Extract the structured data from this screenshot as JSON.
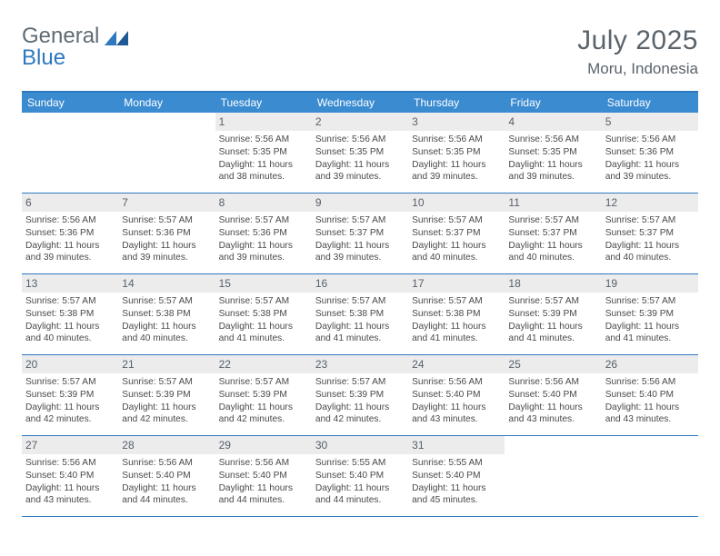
{
  "logo": {
    "part1": "General",
    "part2": "Blue"
  },
  "title": "July 2025",
  "location": "Moru, Indonesia",
  "dayNames": [
    "Sunday",
    "Monday",
    "Tuesday",
    "Wednesday",
    "Thursday",
    "Friday",
    "Saturday"
  ],
  "colors": {
    "headerBlue": "#3b8bd1",
    "borderBlue": "#2e78bf",
    "numBg": "#ececec",
    "textGray": "#5a636b",
    "bodyText": "#4a4a4a"
  },
  "typography": {
    "title_pt": 30,
    "location_pt": 17,
    "dow_pt": 12,
    "daynum_pt": 12,
    "body_pt": 10.2
  },
  "weeks": [
    [
      null,
      null,
      {
        "n": "1",
        "sunrise": "5:56 AM",
        "sunset": "5:35 PM",
        "dlh": 11,
        "dlm": 38
      },
      {
        "n": "2",
        "sunrise": "5:56 AM",
        "sunset": "5:35 PM",
        "dlh": 11,
        "dlm": 39
      },
      {
        "n": "3",
        "sunrise": "5:56 AM",
        "sunset": "5:35 PM",
        "dlh": 11,
        "dlm": 39
      },
      {
        "n": "4",
        "sunrise": "5:56 AM",
        "sunset": "5:35 PM",
        "dlh": 11,
        "dlm": 39
      },
      {
        "n": "5",
        "sunrise": "5:56 AM",
        "sunset": "5:36 PM",
        "dlh": 11,
        "dlm": 39
      }
    ],
    [
      {
        "n": "6",
        "sunrise": "5:56 AM",
        "sunset": "5:36 PM",
        "dlh": 11,
        "dlm": 39
      },
      {
        "n": "7",
        "sunrise": "5:57 AM",
        "sunset": "5:36 PM",
        "dlh": 11,
        "dlm": 39
      },
      {
        "n": "8",
        "sunrise": "5:57 AM",
        "sunset": "5:36 PM",
        "dlh": 11,
        "dlm": 39
      },
      {
        "n": "9",
        "sunrise": "5:57 AM",
        "sunset": "5:37 PM",
        "dlh": 11,
        "dlm": 39
      },
      {
        "n": "10",
        "sunrise": "5:57 AM",
        "sunset": "5:37 PM",
        "dlh": 11,
        "dlm": 40
      },
      {
        "n": "11",
        "sunrise": "5:57 AM",
        "sunset": "5:37 PM",
        "dlh": 11,
        "dlm": 40
      },
      {
        "n": "12",
        "sunrise": "5:57 AM",
        "sunset": "5:37 PM",
        "dlh": 11,
        "dlm": 40
      }
    ],
    [
      {
        "n": "13",
        "sunrise": "5:57 AM",
        "sunset": "5:38 PM",
        "dlh": 11,
        "dlm": 40
      },
      {
        "n": "14",
        "sunrise": "5:57 AM",
        "sunset": "5:38 PM",
        "dlh": 11,
        "dlm": 40
      },
      {
        "n": "15",
        "sunrise": "5:57 AM",
        "sunset": "5:38 PM",
        "dlh": 11,
        "dlm": 41
      },
      {
        "n": "16",
        "sunrise": "5:57 AM",
        "sunset": "5:38 PM",
        "dlh": 11,
        "dlm": 41
      },
      {
        "n": "17",
        "sunrise": "5:57 AM",
        "sunset": "5:38 PM",
        "dlh": 11,
        "dlm": 41
      },
      {
        "n": "18",
        "sunrise": "5:57 AM",
        "sunset": "5:39 PM",
        "dlh": 11,
        "dlm": 41
      },
      {
        "n": "19",
        "sunrise": "5:57 AM",
        "sunset": "5:39 PM",
        "dlh": 11,
        "dlm": 41
      }
    ],
    [
      {
        "n": "20",
        "sunrise": "5:57 AM",
        "sunset": "5:39 PM",
        "dlh": 11,
        "dlm": 42
      },
      {
        "n": "21",
        "sunrise": "5:57 AM",
        "sunset": "5:39 PM",
        "dlh": 11,
        "dlm": 42
      },
      {
        "n": "22",
        "sunrise": "5:57 AM",
        "sunset": "5:39 PM",
        "dlh": 11,
        "dlm": 42
      },
      {
        "n": "23",
        "sunrise": "5:57 AM",
        "sunset": "5:39 PM",
        "dlh": 11,
        "dlm": 42
      },
      {
        "n": "24",
        "sunrise": "5:56 AM",
        "sunset": "5:40 PM",
        "dlh": 11,
        "dlm": 43
      },
      {
        "n": "25",
        "sunrise": "5:56 AM",
        "sunset": "5:40 PM",
        "dlh": 11,
        "dlm": 43
      },
      {
        "n": "26",
        "sunrise": "5:56 AM",
        "sunset": "5:40 PM",
        "dlh": 11,
        "dlm": 43
      }
    ],
    [
      {
        "n": "27",
        "sunrise": "5:56 AM",
        "sunset": "5:40 PM",
        "dlh": 11,
        "dlm": 43
      },
      {
        "n": "28",
        "sunrise": "5:56 AM",
        "sunset": "5:40 PM",
        "dlh": 11,
        "dlm": 44
      },
      {
        "n": "29",
        "sunrise": "5:56 AM",
        "sunset": "5:40 PM",
        "dlh": 11,
        "dlm": 44
      },
      {
        "n": "30",
        "sunrise": "5:55 AM",
        "sunset": "5:40 PM",
        "dlh": 11,
        "dlm": 44
      },
      {
        "n": "31",
        "sunrise": "5:55 AM",
        "sunset": "5:40 PM",
        "dlh": 11,
        "dlm": 45
      },
      null,
      null
    ]
  ],
  "legend": {
    "sunrise_prefix": "Sunrise: ",
    "sunset_prefix": "Sunset: ",
    "daylight_prefix": "Daylight: ",
    "hours_word": " hours",
    "and_word": "and ",
    "minutes_word": " minutes."
  }
}
